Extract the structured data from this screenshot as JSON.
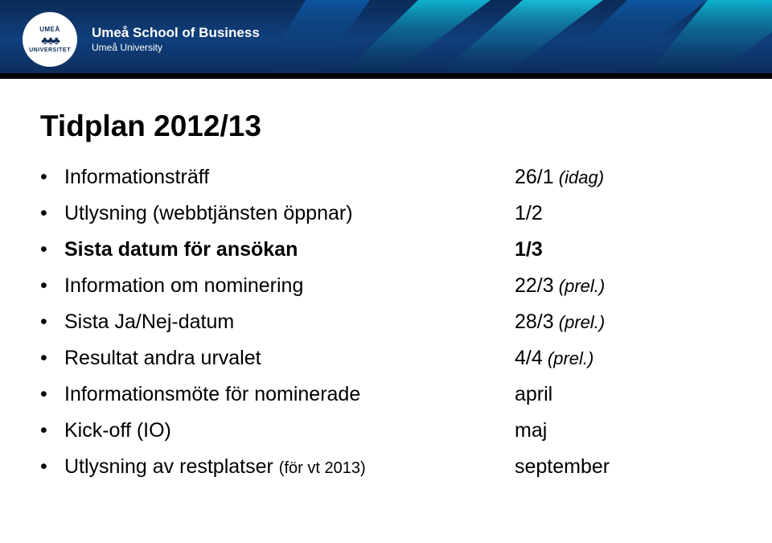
{
  "header": {
    "crest_top": "UMEÅ",
    "crest_mid": "♣♣♣",
    "crest_bot": "UNIVERSITET",
    "school_line1": "Umeå School of Business",
    "school_line2": "Umeå University",
    "bg_gradient_top": "#0b2b56",
    "bg_gradient_mid": "#103f7c",
    "aurora_colors": [
      "#0a2a54",
      "#0e5aa8",
      "#0fc3e0",
      "#0a7fbe",
      "#082448"
    ]
  },
  "title": "Tidplan 2012/13",
  "rows": [
    {
      "label": "Informationsträff",
      "value": "26/1",
      "note": "(idag)",
      "bold": false
    },
    {
      "label": "Utlysning (webbtjänsten öppnar)",
      "value": "1/2",
      "note": "",
      "bold": false
    },
    {
      "label": "Sista datum för ansökan",
      "value": "1/3",
      "note": "",
      "bold": true
    },
    {
      "label": "Information om nominering",
      "value": "22/3",
      "note": "(prel.)",
      "bold": false
    },
    {
      "label": "Sista Ja/Nej-datum",
      "value": "28/3",
      "note": "(prel.)",
      "bold": false
    },
    {
      "label": "Resultat andra urvalet",
      "value": "4/4",
      "note": "(prel.)",
      "bold": false
    },
    {
      "label": "Informationsmöte för nominerade",
      "value": "april",
      "note": "",
      "bold": false
    },
    {
      "label": "Kick-off (IO)",
      "value": "maj",
      "note": "",
      "bold": false
    },
    {
      "label": "Utlysning av restplatser",
      "subnote": "(för vt 2013)",
      "value": "september",
      "note": "",
      "bold": false
    }
  ],
  "style": {
    "title_fontsize": 37,
    "row_fontsize": 25,
    "text_color": "#000000",
    "background": "#ffffff"
  }
}
